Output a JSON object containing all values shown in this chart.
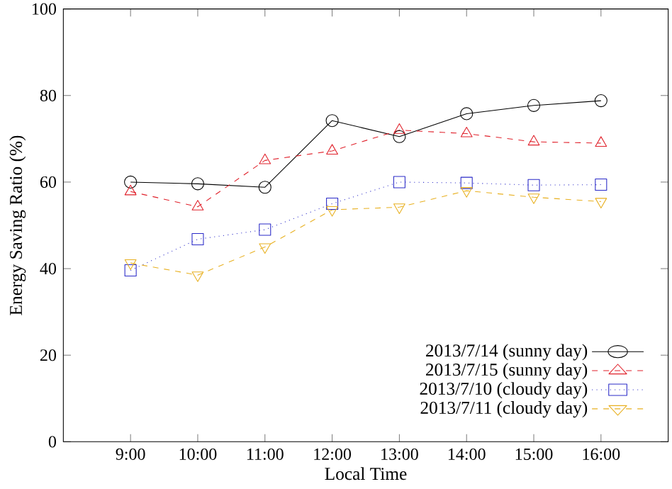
{
  "chart_data": {
    "type": "line",
    "xlabel": "Local Time",
    "ylabel": "Energy Saving Ratio (%)",
    "x": [
      9,
      10,
      11,
      12,
      13,
      14,
      15,
      16
    ],
    "xlim": [
      8,
      17
    ],
    "xticks": [
      {
        "value": 9,
        "label": "9:00"
      },
      {
        "value": 10,
        "label": "10:00"
      },
      {
        "value": 11,
        "label": "11:00"
      },
      {
        "value": 12,
        "label": "12:00"
      },
      {
        "value": 13,
        "label": "13:00"
      },
      {
        "value": 14,
        "label": "14:00"
      },
      {
        "value": 15,
        "label": "15:00"
      },
      {
        "value": 16,
        "label": "16:00"
      }
    ],
    "ylim": [
      0,
      100
    ],
    "yticks": [
      0,
      20,
      40,
      60,
      80,
      100
    ],
    "legend": "bottom right",
    "grid": false,
    "series": [
      {
        "name": "2013/7/14 (sunny day)",
        "color": "#000000",
        "marker": "circle",
        "line_style": "solid",
        "values": [
          60,
          59.6,
          58.8,
          74.2,
          70.5,
          75.8,
          77.7,
          78.8
        ]
      },
      {
        "name": "2013/7/15 (sunny day)",
        "color": "#e0202a",
        "marker": "triangle",
        "line_style": "dashed",
        "values": [
          57.8,
          54.3,
          65,
          67.2,
          72,
          71.2,
          69.3,
          69
        ]
      },
      {
        "name": "2013/7/10 (cloudy day)",
        "color": "#2a2ac8",
        "marker": "square",
        "line_style": "dotted",
        "values": [
          39.6,
          46.8,
          49,
          55,
          60,
          59.8,
          59.3,
          59.4
        ]
      },
      {
        "name": "2013/7/11 (cloudy day)",
        "color": "#e8b020",
        "marker": "triangle_down",
        "line_style": "dashed",
        "values": [
          41.3,
          38.5,
          45,
          53.6,
          54.2,
          58,
          56.5,
          55.5
        ]
      }
    ]
  }
}
